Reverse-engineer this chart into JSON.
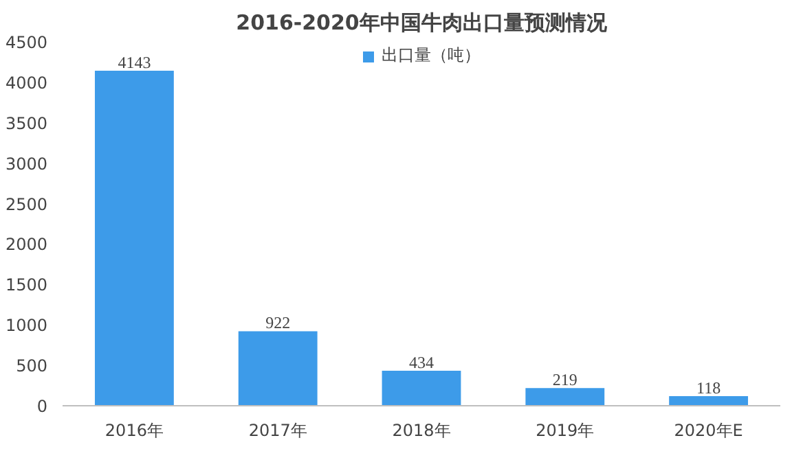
{
  "chart_data": {
    "type": "bar",
    "title": "2016-2020年中国牛肉出口量预测情况",
    "categories": [
      "2016年",
      "2017年",
      "2018年",
      "2019年",
      "2020年E"
    ],
    "series": [
      {
        "name": "出口量（吨）",
        "color": "#3d9be9",
        "values": [
          4143,
          922,
          434,
          219,
          118
        ]
      }
    ],
    "ylim": [
      0,
      4500
    ],
    "yticks": [
      0,
      500,
      1000,
      1500,
      2000,
      2500,
      3000,
      3500,
      4000,
      4500
    ],
    "data_labels": true,
    "grid": false,
    "legend": "top"
  }
}
